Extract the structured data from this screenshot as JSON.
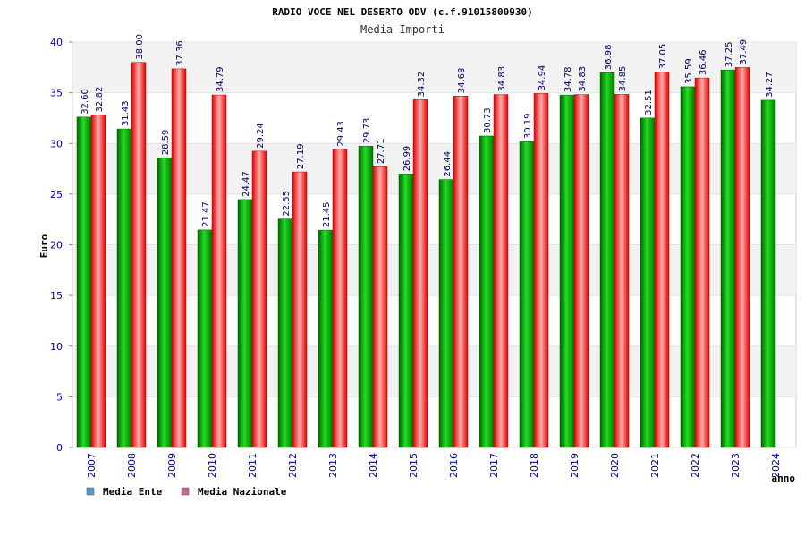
{
  "chart_data": {
    "type": "bar",
    "title": "RADIO VOCE NEL DESERTO ODV (c.f.91015800930)",
    "subtitle": "Media Importi",
    "xlabel": "anno",
    "ylabel": "Euro",
    "ylim": [
      0,
      40
    ],
    "yticks": [
      "0",
      "5",
      "10",
      "15",
      "20",
      "25",
      "30",
      "35",
      "40"
    ],
    "grid": true,
    "legend_position": "bottom-left",
    "categories": [
      "2007",
      "2008",
      "2009",
      "2010",
      "2011",
      "2012",
      "2013",
      "2014",
      "2015",
      "2016",
      "2017",
      "2018",
      "2019",
      "2020",
      "2021",
      "2022",
      "2023",
      "2024"
    ],
    "series": [
      {
        "name": "Media Ente",
        "color": "#00aa00",
        "legend_color": "#5b9bd5",
        "values": [
          32.6,
          31.43,
          28.59,
          21.47,
          24.47,
          22.55,
          21.45,
          29.73,
          26.99,
          26.44,
          30.73,
          30.19,
          34.78,
          36.98,
          32.51,
          35.59,
          37.25,
          34.27
        ],
        "labels": [
          "32.60",
          "31.43",
          "28.59",
          "21.47",
          "24.47",
          "22.55",
          "21.45",
          "29.73",
          "26.99",
          "26.44",
          "30.73",
          "30.19",
          "34.78",
          "36.98",
          "32.51",
          "35.59",
          "37.25",
          "34.27"
        ]
      },
      {
        "name": "Media Nazionale",
        "color": "#ee1111",
        "legend_color": "#cc6699",
        "values": [
          32.82,
          38.0,
          37.36,
          34.79,
          29.24,
          27.19,
          29.43,
          27.71,
          34.32,
          34.68,
          34.83,
          34.94,
          34.83,
          34.85,
          37.05,
          36.46,
          37.49,
          null
        ],
        "labels": [
          "32.82",
          "38.00",
          "37.36",
          "34.79",
          "29.24",
          "27.19",
          "29.43",
          "27.71",
          "34.32",
          "34.68",
          "34.83",
          "34.94",
          "34.83",
          "34.85",
          "37.05",
          "36.46",
          "37.49",
          null
        ]
      }
    ]
  }
}
